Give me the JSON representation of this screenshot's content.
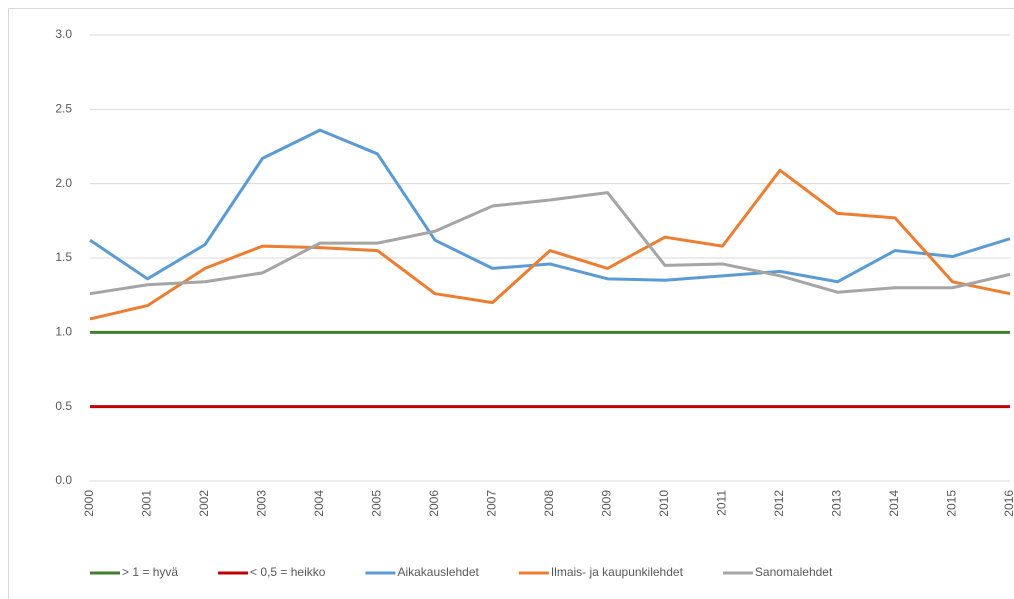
{
  "chart_data": {
    "type": "line",
    "categories": [
      "2000",
      "2001",
      "2002",
      "2003",
      "2004",
      "2005",
      "2006",
      "2007",
      "2008",
      "2009",
      "2010",
      "2011",
      "2012",
      "2013",
      "2014",
      "2015",
      "2016"
    ],
    "series": [
      {
        "name": "> 1 = hyvä",
        "color": "#3f7f2a",
        "values": [
          1,
          1,
          1,
          1,
          1,
          1,
          1,
          1,
          1,
          1,
          1,
          1,
          1,
          1,
          1,
          1,
          1
        ]
      },
      {
        "name": "< 0,5 = heikko",
        "color": "#c00000",
        "values": [
          0.5,
          0.5,
          0.5,
          0.5,
          0.5,
          0.5,
          0.5,
          0.5,
          0.5,
          0.5,
          0.5,
          0.5,
          0.5,
          0.5,
          0.5,
          0.5,
          0.5
        ]
      },
      {
        "name": "Aikakauslehdet",
        "color": "#5b9bd5",
        "values": [
          1.62,
          1.36,
          1.59,
          2.17,
          2.36,
          2.2,
          1.62,
          1.43,
          1.46,
          1.36,
          1.35,
          1.38,
          1.41,
          1.34,
          1.55,
          1.51,
          1.63
        ]
      },
      {
        "name": "Ilmais- ja kaupunkilehdet",
        "color": "#ed7d31",
        "values": [
          1.09,
          1.18,
          1.43,
          1.58,
          1.57,
          1.55,
          1.26,
          1.2,
          1.55,
          1.43,
          1.64,
          1.58,
          2.09,
          1.8,
          1.77,
          1.34,
          1.26
        ]
      },
      {
        "name": "Sanomalehdet",
        "color": "#a5a5a5",
        "values": [
          1.26,
          1.32,
          1.34,
          1.4,
          1.6,
          1.6,
          1.68,
          1.85,
          1.89,
          1.94,
          1.45,
          1.46,
          1.38,
          1.27,
          1.3,
          1.3,
          1.39
        ]
      }
    ],
    "ylim": [
      0,
      3
    ],
    "yticks": [
      {
        "value": 0,
        "label": "0.0"
      },
      {
        "value": 0.5,
        "label": "0.5"
      },
      {
        "value": 1,
        "label": "1.0"
      },
      {
        "value": 1.5,
        "label": "1.5"
      },
      {
        "value": 2,
        "label": "2.0"
      },
      {
        "value": 2.5,
        "label": "2.5"
      },
      {
        "value": 3,
        "label": "3.0"
      }
    ],
    "grid": true,
    "legend": "bottom"
  }
}
